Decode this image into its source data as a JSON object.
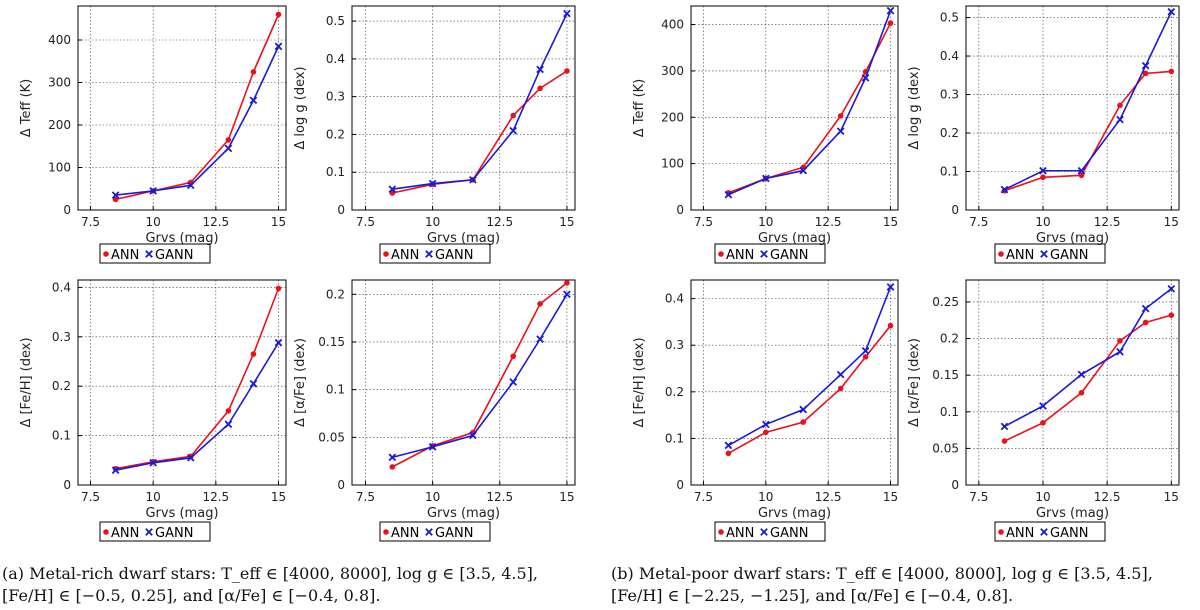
{
  "colors": {
    "ann": "#e8111c",
    "gann": "#1a1ad6"
  },
  "legend": {
    "ann": "ANN",
    "gann": "GANN"
  },
  "captions": {
    "a": "(a) Metal-rich dwarf stars: T_eff ∈ [4000, 8000], log g ∈ [3.5, 4.5], [Fe/H] ∈ [−0.5, 0.25], and [α/Fe] ∈ [−0.4, 0.8].",
    "b": "(b) Metal-poor dwarf stars: T_eff ∈ [4000, 8000], log g ∈ [3.5, 4.5], [Fe/H] ∈ [−2.25, −1.25], and [α/Fe] ∈ [−0.4, 0.8]."
  },
  "chart_data": [
    {
      "id": "a-teff",
      "type": "line",
      "xlabel": "Grvs (mag)",
      "ylabel": "Δ Teff (K)",
      "xlim": [
        7,
        15.3
      ],
      "ylim": [
        0,
        480
      ],
      "xticks": [
        7.5,
        10,
        12.5,
        15
      ],
      "xtick_labels": [
        "7.5",
        "10",
        "12.5",
        "15"
      ],
      "yticks": [
        0,
        100,
        200,
        300,
        400
      ],
      "ytick_labels": [
        "0",
        "100",
        "200",
        "300",
        "400"
      ],
      "x": [
        8.5,
        10,
        11.5,
        13,
        14,
        15
      ],
      "series": [
        {
          "name": "ANN",
          "values": [
            25,
            45,
            65,
            165,
            325,
            460
          ]
        },
        {
          "name": "GANN",
          "values": [
            35,
            45,
            58,
            145,
            258,
            385
          ]
        }
      ]
    },
    {
      "id": "a-logg",
      "type": "line",
      "xlabel": "Grvs (mag)",
      "ylabel": "Δ log g (dex)",
      "xlim": [
        7,
        15.3
      ],
      "ylim": [
        0,
        0.54
      ],
      "xticks": [
        7.5,
        10,
        12.5,
        15
      ],
      "xtick_labels": [
        "7.5",
        "10",
        "12.5",
        "15"
      ],
      "yticks": [
        0,
        0.1,
        0.2,
        0.3,
        0.4,
        0.5
      ],
      "ytick_labels": [
        "0",
        "0.1",
        "0.2",
        "0.3",
        "0.4",
        "0.5"
      ],
      "x": [
        8.5,
        10,
        11.5,
        13,
        14,
        15
      ],
      "series": [
        {
          "name": "ANN",
          "values": [
            0.045,
            0.068,
            0.08,
            0.25,
            0.322,
            0.368
          ]
        },
        {
          "name": "GANN",
          "values": [
            0.055,
            0.07,
            0.08,
            0.21,
            0.372,
            0.52
          ]
        }
      ]
    },
    {
      "id": "b-teff",
      "type": "line",
      "xlabel": "Grvs (mag)",
      "ylabel": "Δ Teff (K)",
      "xlim": [
        7,
        15.3
      ],
      "ylim": [
        0,
        440
      ],
      "xticks": [
        7.5,
        10,
        12.5,
        15
      ],
      "xtick_labels": [
        "7.5",
        "10",
        "12.5",
        "15"
      ],
      "yticks": [
        0,
        100,
        200,
        300,
        400
      ],
      "ytick_labels": [
        "0",
        "100",
        "200",
        "300",
        "400"
      ],
      "x": [
        8.5,
        10,
        11.5,
        13,
        14,
        15
      ],
      "series": [
        {
          "name": "ANN",
          "values": [
            37,
            68,
            92,
            203,
            298,
            403
          ]
        },
        {
          "name": "GANN",
          "values": [
            33,
            68,
            85,
            170,
            285,
            430
          ]
        }
      ]
    },
    {
      "id": "b-logg",
      "type": "line",
      "xlabel": "Grvs (mag)",
      "ylabel": "Δ log g (dex)",
      "xlim": [
        7,
        15.3
      ],
      "ylim": [
        0,
        0.53
      ],
      "xticks": [
        7.5,
        10,
        12.5,
        15
      ],
      "xtick_labels": [
        "7.5",
        "10",
        "12.5",
        "15"
      ],
      "yticks": [
        0,
        0.1,
        0.2,
        0.3,
        0.4,
        0.5
      ],
      "ytick_labels": [
        "0",
        "0.1",
        "0.2",
        "0.3",
        "0.4",
        "0.5"
      ],
      "x": [
        8.5,
        10,
        11.5,
        13,
        14,
        15
      ],
      "series": [
        {
          "name": "ANN",
          "values": [
            0.05,
            0.085,
            0.09,
            0.272,
            0.355,
            0.36
          ]
        },
        {
          "name": "GANN",
          "values": [
            0.053,
            0.102,
            0.102,
            0.235,
            0.375,
            0.515
          ]
        }
      ]
    },
    {
      "id": "a-feh",
      "type": "line",
      "xlabel": "Grvs (mag)",
      "ylabel": "Δ [Fe/H] (dex)",
      "xlim": [
        7,
        15.3
      ],
      "ylim": [
        0,
        0.415
      ],
      "xticks": [
        7.5,
        10,
        12.5,
        15
      ],
      "xtick_labels": [
        "7.5",
        "10",
        "12.5",
        "15"
      ],
      "yticks": [
        0,
        0.1,
        0.2,
        0.3,
        0.4
      ],
      "ytick_labels": [
        "0",
        "0.1",
        "0.2",
        "0.3",
        "0.4"
      ],
      "x": [
        8.5,
        10,
        11.5,
        13,
        14,
        15
      ],
      "series": [
        {
          "name": "ANN",
          "values": [
            0.033,
            0.047,
            0.058,
            0.15,
            0.265,
            0.398
          ]
        },
        {
          "name": "GANN",
          "values": [
            0.03,
            0.045,
            0.055,
            0.123,
            0.205,
            0.288
          ]
        }
      ]
    },
    {
      "id": "a-alpha",
      "type": "line",
      "xlabel": "Grvs (mag)",
      "ylabel": "Δ [α/Fe] (dex)",
      "xlim": [
        7,
        15.3
      ],
      "ylim": [
        0,
        0.215
      ],
      "xticks": [
        7.5,
        10,
        12.5,
        15
      ],
      "xtick_labels": [
        "7.5",
        "10",
        "12.5",
        "15"
      ],
      "yticks": [
        0,
        0.05,
        0.1,
        0.15,
        0.2
      ],
      "ytick_labels": [
        "0",
        "0.05",
        "0.1",
        "0.15",
        "0.2"
      ],
      "x": [
        8.5,
        10,
        11.5,
        13,
        14,
        15
      ],
      "series": [
        {
          "name": "ANN",
          "values": [
            0.019,
            0.041,
            0.055,
            0.135,
            0.19,
            0.212
          ]
        },
        {
          "name": "GANN",
          "values": [
            0.029,
            0.04,
            0.052,
            0.108,
            0.153,
            0.2
          ]
        }
      ]
    },
    {
      "id": "b-feh",
      "type": "line",
      "xlabel": "Grvs (mag)",
      "ylabel": "Δ [Fe/H] (dex)",
      "xlim": [
        7,
        15.3
      ],
      "ylim": [
        0,
        0.44
      ],
      "xticks": [
        7.5,
        10,
        12.5,
        15
      ],
      "xtick_labels": [
        "7.5",
        "10",
        "12.5",
        "15"
      ],
      "yticks": [
        0,
        0.1,
        0.2,
        0.3,
        0.4
      ],
      "ytick_labels": [
        "0",
        "0.1",
        "0.2",
        "0.3",
        "0.4"
      ],
      "x": [
        8.5,
        10,
        11.5,
        13,
        14,
        15
      ],
      "series": [
        {
          "name": "ANN",
          "values": [
            0.068,
            0.113,
            0.135,
            0.207,
            0.275,
            0.342
          ]
        },
        {
          "name": "GANN",
          "values": [
            0.085,
            0.13,
            0.162,
            0.237,
            0.288,
            0.425
          ]
        }
      ]
    },
    {
      "id": "b-alpha",
      "type": "line",
      "xlabel": "Grvs (mag)",
      "ylabel": "Δ [α/Fe] (dex)",
      "xlim": [
        7,
        15.3
      ],
      "ylim": [
        0,
        0.28
      ],
      "xticks": [
        7.5,
        10,
        12.5,
        15
      ],
      "xtick_labels": [
        "7.5",
        "10",
        "12.5",
        "15"
      ],
      "yticks": [
        0,
        0.05,
        0.1,
        0.15,
        0.2,
        0.25
      ],
      "ytick_labels": [
        "0",
        "0.05",
        "0.1",
        "0.15",
        "0.2",
        "0.25"
      ],
      "x": [
        8.5,
        10,
        11.5,
        13,
        14,
        15
      ],
      "series": [
        {
          "name": "ANN",
          "values": [
            0.06,
            0.085,
            0.126,
            0.197,
            0.222,
            0.232
          ]
        },
        {
          "name": "GANN",
          "values": [
            0.08,
            0.108,
            0.151,
            0.182,
            0.241,
            0.268
          ]
        }
      ]
    }
  ]
}
